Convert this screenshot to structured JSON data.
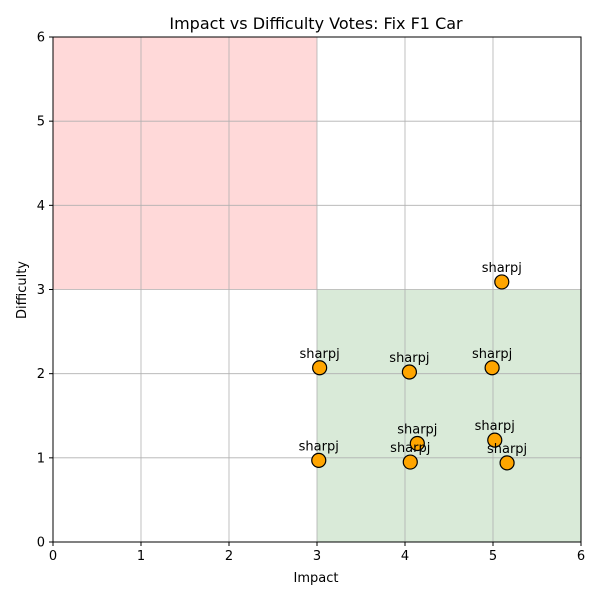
{
  "chart_data": {
    "type": "scatter",
    "title": "Impact vs Difficulty Votes: Fix F1 Car",
    "xlabel": "Impact",
    "ylabel": "Difficulty",
    "xlim": [
      0,
      6
    ],
    "ylim": [
      0,
      6
    ],
    "xticks": [
      "0",
      "1",
      "2",
      "3",
      "4",
      "5",
      "6"
    ],
    "yticks": [
      "0",
      "1",
      "2",
      "3",
      "4",
      "5",
      "6"
    ],
    "grid": true,
    "regions": [
      {
        "name": "high-difficulty-low-impact",
        "x": [
          0,
          3
        ],
        "y": [
          3,
          6
        ],
        "color": "#ffd9d9"
      },
      {
        "name": "low-difficulty-high-impact",
        "x": [
          3,
          6
        ],
        "y": [
          0,
          3
        ],
        "color": "#d9ead8"
      }
    ],
    "marker_color": "#ffa500",
    "marker_edge": "#000000",
    "points": [
      {
        "x": 5.1,
        "y": 3.09,
        "label": "sharpj"
      },
      {
        "x": 3.03,
        "y": 2.07,
        "label": "sharpj"
      },
      {
        "x": 4.05,
        "y": 2.02,
        "label": "sharpj"
      },
      {
        "x": 4.99,
        "y": 2.07,
        "label": "sharpj"
      },
      {
        "x": 4.14,
        "y": 1.17,
        "label": "sharpj"
      },
      {
        "x": 5.02,
        "y": 1.21,
        "label": "sharpj"
      },
      {
        "x": 3.02,
        "y": 0.97,
        "label": "sharpj"
      },
      {
        "x": 4.06,
        "y": 0.95,
        "label": "sharpj"
      },
      {
        "x": 5.16,
        "y": 0.94,
        "label": "sharpj"
      }
    ]
  }
}
